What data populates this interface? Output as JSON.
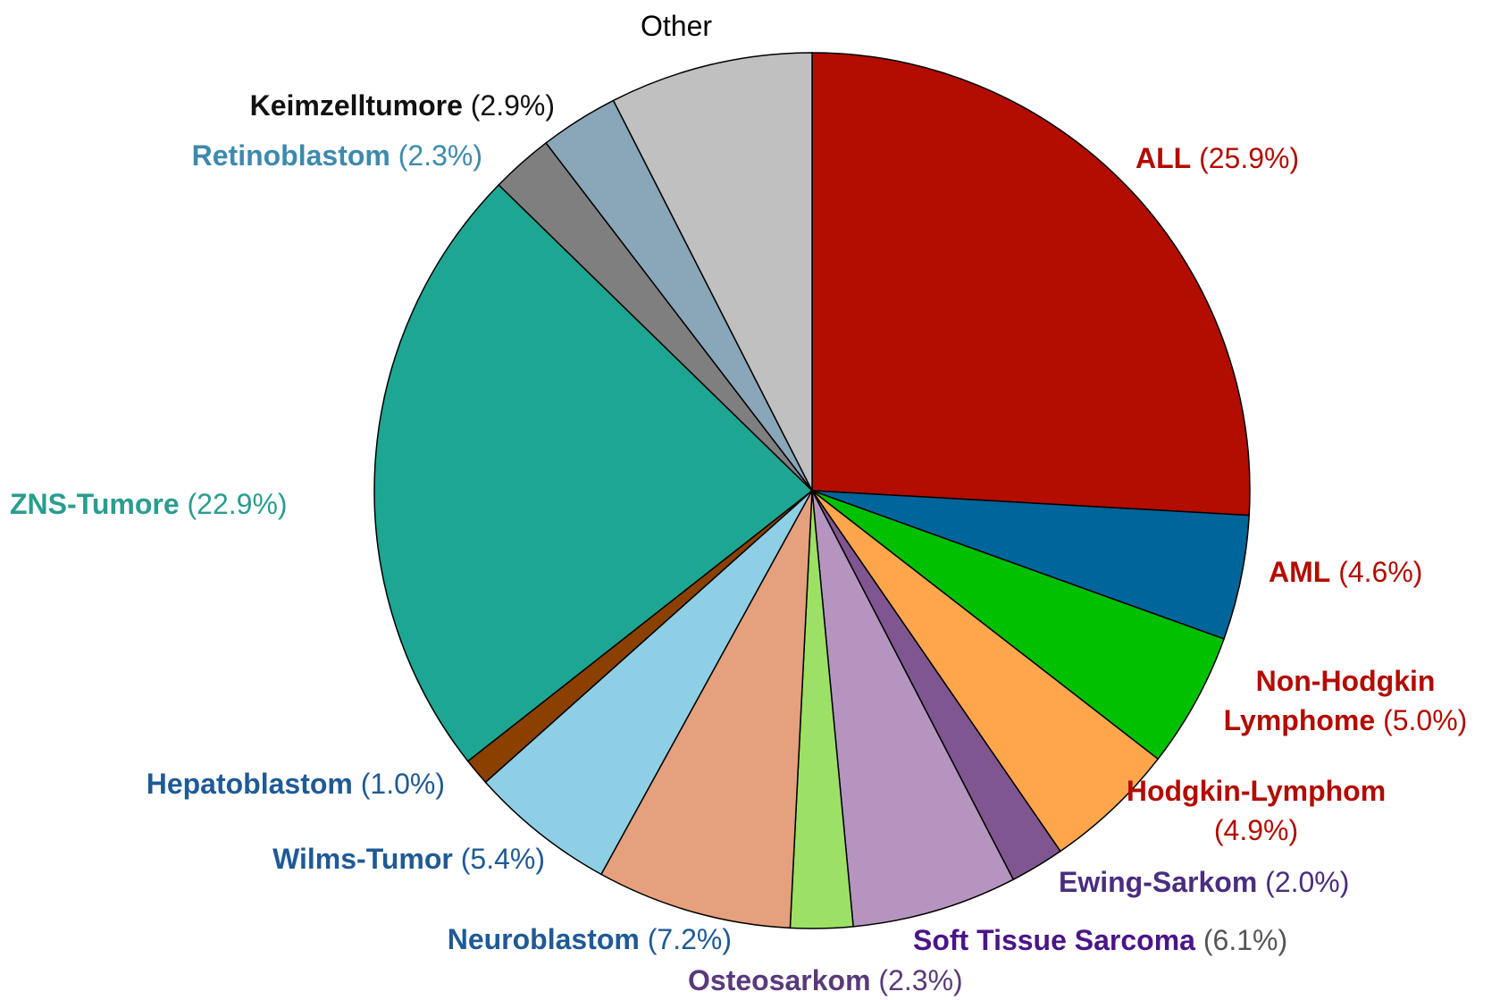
{
  "chart_data": {
    "type": "pie",
    "categories": [
      "ALL",
      "AML",
      "Non-Hodgkin Lymphome",
      "Hodgkin-Lymphom",
      "Ewing-Sarkom",
      "Soft Tissue Sarcoma",
      "Osteosarkom",
      "Neuroblastom",
      "Wilms-Tumor",
      "Hepatoblastom",
      "ZNS-Tumore",
      "Retinoblastom",
      "Keimzelltumore",
      "Other"
    ],
    "values": [
      25.9,
      4.6,
      5.0,
      4.9,
      2.0,
      6.1,
      2.3,
      7.2,
      5.4,
      1.0,
      22.9,
      2.3,
      2.9,
      7.5
    ],
    "value_labels": [
      "(25.9%)",
      "(4.6%)",
      "(5.0%)",
      "(4.9%)",
      "(2.0%)",
      "(6.1%)",
      "(2.3%)",
      "(7.2%)",
      "(5.4%)",
      "(1.0%)",
      "(22.9%)",
      "(2.3%)",
      "(2.9%)",
      null
    ],
    "colors": [
      "#b30c00",
      "#00659a",
      "#00c000",
      "#ffa64d",
      "#7f5690",
      "#b595c0",
      "#9de066",
      "#e5a07e",
      "#8fcfe5",
      "#8b4000",
      "#1da692",
      "#7f7f7f",
      "#8aa6b9",
      "#c0c0c0"
    ],
    "label_colors": [
      "#b30c00",
      "#b30c00",
      "#b30c00",
      "#b30c00",
      "#4b2d7f",
      "#4b1488",
      "#5a3a7a",
      "#1f5a96",
      "#1f5a96",
      "#1f5a96",
      "#2a9d8f",
      "#3d8aad",
      "#111111",
      "#000000"
    ],
    "value_label_colors": [
      "#b30c00",
      "#b30c00",
      "#b30c00",
      "#b30c00",
      "#4b2d7f",
      "#555555",
      "#5a3a7a",
      "#1f5a96",
      "#1f5a96",
      "#1f5a96",
      "#2a9d8f",
      "#3d8aad",
      "#111111",
      "#000000"
    ]
  }
}
